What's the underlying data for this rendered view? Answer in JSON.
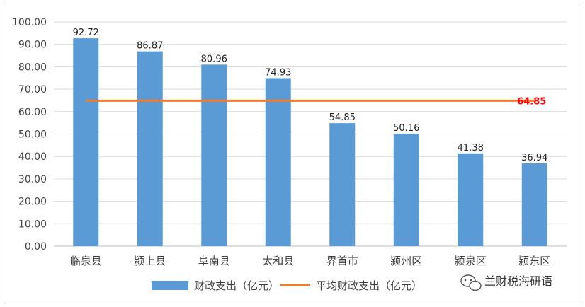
{
  "chart_data": {
    "type": "bar",
    "categories": [
      "临泉县",
      "颍上县",
      "阜南县",
      "太和县",
      "界首市",
      "颍州区",
      "颍泉区",
      "颍东区"
    ],
    "series": [
      {
        "name": "财政支出（亿元）",
        "values": [
          92.72,
          86.87,
          80.96,
          74.93,
          54.85,
          50.16,
          41.38,
          36.94
        ]
      }
    ],
    "average": {
      "name": "平均财政支出（亿元）",
      "value": 64.85,
      "label": "64.85"
    },
    "ylim": [
      0,
      100
    ],
    "yticks": [
      "0.00",
      "10.00",
      "20.00",
      "30.00",
      "40.00",
      "50.00",
      "60.00",
      "70.00",
      "80.00",
      "90.00",
      "100.00"
    ],
    "grid": true,
    "legend_position": "bottom"
  },
  "colors": {
    "bar": "#5b9bd5",
    "average_line": "#ed7d31",
    "average_label": "#ff0000",
    "grid": "#d9d9d9"
  },
  "watermark": {
    "icon": "wechat-icon",
    "text": "兰财税海研语"
  }
}
